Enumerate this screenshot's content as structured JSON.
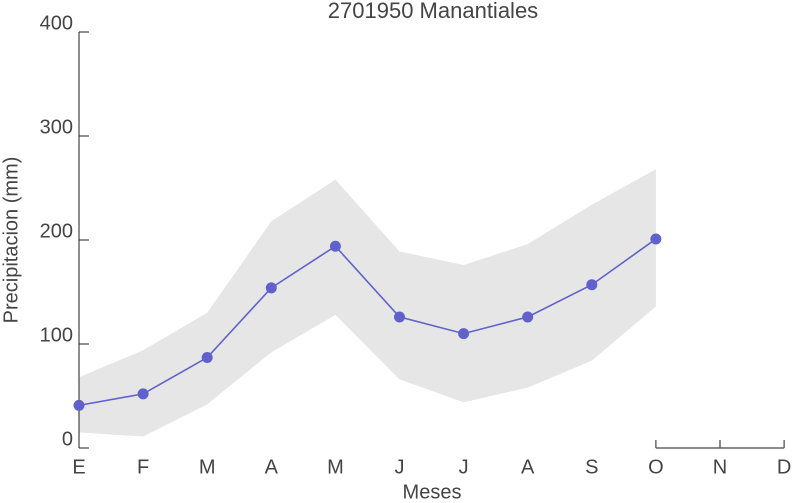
{
  "chart_data": {
    "type": "line",
    "title": "2701950 Manantiales",
    "x_label": "Meses",
    "y_label": "Precipitacion (mm)",
    "categories": [
      "E",
      "F",
      "M",
      "A",
      "M",
      "J",
      "J",
      "A",
      "S",
      "O",
      "N",
      "D"
    ],
    "series": [
      {
        "color": "#6161cc",
        "values": [
          41,
          52,
          87,
          154,
          194,
          126,
          110,
          126,
          157,
          201,
          null,
          null
        ]
      }
    ],
    "band": {
      "color": "#e6e6e6",
      "lower": [
        15,
        11,
        42,
        92,
        128,
        66,
        44,
        58,
        84,
        136,
        null,
        null
      ],
      "upper": [
        68,
        94,
        130,
        218,
        258,
        189,
        176,
        196,
        234,
        268,
        null,
        null
      ]
    },
    "ylim": [
      0,
      400
    ],
    "yticks": [
      0,
      100,
      200,
      300,
      400
    ]
  }
}
